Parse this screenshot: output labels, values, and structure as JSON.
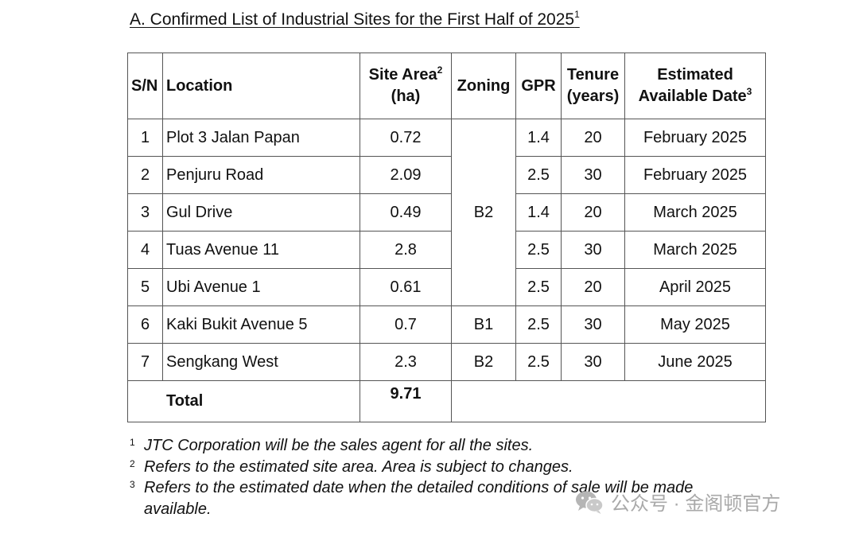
{
  "title": {
    "text": "A.  Confirmed List of Industrial Sites for the First Half of 2025",
    "footnote_mark": "1"
  },
  "table": {
    "headers": {
      "sn": "S/N",
      "location": "Location",
      "site_area_line1": "Site Area",
      "site_area_mark": "2",
      "site_area_line2": "(ha)",
      "zoning": "Zoning",
      "gpr": "GPR",
      "tenure_line1": "Tenure",
      "tenure_line2": "(years)",
      "date_line1": "Estimated",
      "date_line2": "Available Date",
      "date_mark": "3"
    },
    "rows": [
      {
        "sn": "1",
        "location": "Plot 3 Jalan Papan",
        "area": "0.72",
        "zoning": "B2",
        "gpr": "1.4",
        "tenure": "20",
        "date": "February 2025"
      },
      {
        "sn": "2",
        "location": "Penjuru Road",
        "area": "2.09",
        "zoning": "B2",
        "gpr": "2.5",
        "tenure": "30",
        "date": "February 2025"
      },
      {
        "sn": "3",
        "location": "Gul Drive",
        "area": "0.49",
        "zoning": "B2",
        "gpr": "1.4",
        "tenure": "20",
        "date": "March 2025"
      },
      {
        "sn": "4",
        "location": "Tuas Avenue 11",
        "area": "2.8",
        "zoning": "B2",
        "gpr": "2.5",
        "tenure": "30",
        "date": "March 2025"
      },
      {
        "sn": "5",
        "location": "Ubi Avenue 1",
        "area": "0.61",
        "zoning": "B2",
        "gpr": "2.5",
        "tenure": "20",
        "date": "April 2025"
      },
      {
        "sn": "6",
        "location": "Kaki Bukit Avenue 5",
        "area": "0.7",
        "zoning": "B1",
        "gpr": "2.5",
        "tenure": "30",
        "date": "May 2025"
      },
      {
        "sn": "7",
        "location": "Sengkang West",
        "area": "2.3",
        "zoning": "B2",
        "gpr": "2.5",
        "tenure": "30",
        "date": "June 2025"
      }
    ],
    "total": {
      "label": "Total",
      "value": "9.71"
    }
  },
  "footnotes": [
    {
      "mark": "1",
      "text": "JTC Corporation will be the sales agent for all the sites."
    },
    {
      "mark": "2",
      "text": "Refers to the estimated site area. Area is subject to changes."
    },
    {
      "mark": "3",
      "text": "Refers to the estimated date when the detailed conditions of sale will be made",
      "text_cont": "available."
    }
  ],
  "watermark": {
    "text": "公众号 · 金阁顿官方",
    "icon": "wechat-icon"
  }
}
